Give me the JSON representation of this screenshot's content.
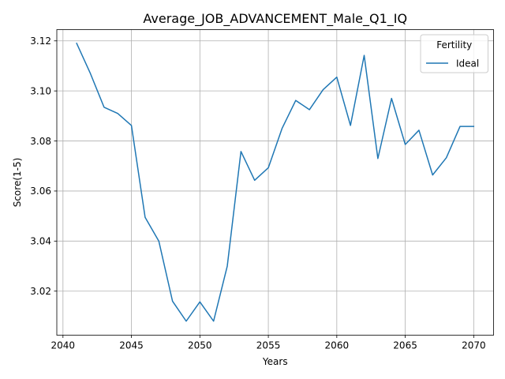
{
  "chart_data": {
    "type": "line",
    "title": "Average_JOB_ADVANCEMENT_Male_Q1_IQ",
    "xlabel": "Years",
    "ylabel": "Score(1-5)",
    "xlim": [
      2039.55,
      2071.45
    ],
    "ylim": [
      3.0024,
      3.1245
    ],
    "xticks": [
      2040,
      2045,
      2050,
      2055,
      2060,
      2065,
      2070
    ],
    "yticks": [
      3.02,
      3.04,
      3.06,
      3.08,
      3.1,
      3.12
    ],
    "xtick_labels": [
      "2040",
      "2045",
      "2050",
      "2055",
      "2060",
      "2065",
      "2070"
    ],
    "ytick_labels": [
      "3.02",
      "3.04",
      "3.06",
      "3.08",
      "3.10",
      "3.12"
    ],
    "grid": true,
    "legend": {
      "title": "Fertility",
      "placement": "top-right"
    },
    "series": [
      {
        "name": "Ideal",
        "color": "#1f77b4",
        "x": [
          2041,
          2042,
          2043,
          2044,
          2045,
          2046,
          2047,
          2048,
          2049,
          2050,
          2051,
          2052,
          2053,
          2054,
          2055,
          2056,
          2057,
          2058,
          2059,
          2060,
          2061,
          2062,
          2063,
          2064,
          2065,
          2066,
          2067,
          2068,
          2069,
          2070
        ],
        "y": [
          3.119,
          3.107,
          3.0935,
          3.091,
          3.0862,
          3.0495,
          3.04,
          3.016,
          3.008,
          3.0157,
          3.008,
          3.03,
          3.0758,
          3.0643,
          3.0693,
          3.085,
          3.0962,
          3.0925,
          3.1005,
          3.1055,
          3.0862,
          3.1142,
          3.073,
          3.097,
          3.0786,
          3.0843,
          3.0664,
          3.0733,
          3.0858,
          3.0858
        ]
      }
    ]
  }
}
